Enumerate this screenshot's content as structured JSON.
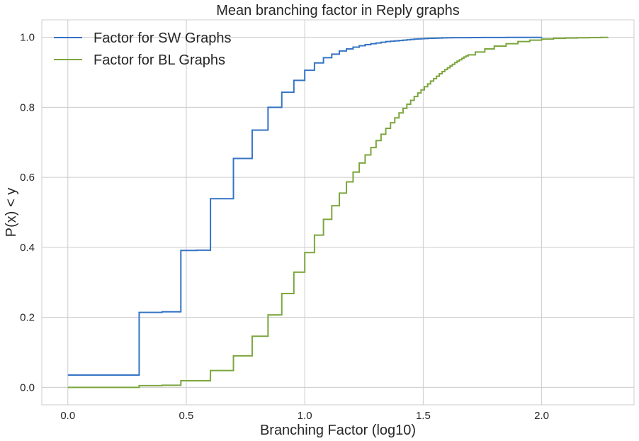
{
  "chart_data": {
    "type": "line",
    "title": "Mean branching factor in Reply graphs",
    "xlabel": "Branching Factor (log10)",
    "ylabel": "P(x) < y",
    "xlim": [
      -0.11,
      2.39
    ],
    "ylim": [
      -0.05,
      1.05
    ],
    "xticks": [
      0.0,
      0.5,
      1.0,
      1.5,
      2.0
    ],
    "xtick_labels": [
      "0.0",
      "0.5",
      "1.0",
      "1.5",
      "2.0"
    ],
    "yticks": [
      0.0,
      0.2,
      0.4,
      0.6,
      0.8,
      1.0
    ],
    "ytick_labels": [
      "0.0",
      "0.2",
      "0.4",
      "0.6",
      "0.8",
      "1.0"
    ],
    "grid": true,
    "legend_position": "top-left",
    "series": [
      {
        "name": "Factor for SW Graphs",
        "color": "#3574c4",
        "step": true,
        "x": [
          0.0,
          0.301,
          0.398,
          0.477,
          0.544,
          0.602,
          0.699,
          0.778,
          0.845,
          0.903,
          0.954,
          1.0,
          1.041,
          1.079,
          1.114,
          1.146,
          1.176,
          1.204,
          1.23,
          1.255,
          1.279,
          1.301,
          1.322,
          1.342,
          1.362,
          1.38,
          1.398,
          1.415,
          1.431,
          1.447,
          1.462,
          1.477,
          1.491,
          1.505,
          1.519,
          1.531,
          1.544,
          1.556,
          1.568,
          1.58,
          1.602,
          1.623,
          1.653,
          1.699,
          1.748,
          1.799,
          1.851,
          1.903,
          1.954,
          2.0
        ],
        "y": [
          0.035,
          0.214,
          0.216,
          0.391,
          0.392,
          0.539,
          0.654,
          0.735,
          0.8,
          0.843,
          0.877,
          0.906,
          0.927,
          0.942,
          0.952,
          0.961,
          0.967,
          0.972,
          0.976,
          0.979,
          0.982,
          0.984,
          0.986,
          0.988,
          0.989,
          0.99,
          0.991,
          0.992,
          0.993,
          0.994,
          0.995,
          0.9955,
          0.996,
          0.9965,
          0.997,
          0.9973,
          0.9976,
          0.9979,
          0.9982,
          0.9985,
          0.9988,
          0.999,
          0.9992,
          0.9994,
          0.9996,
          0.9997,
          0.9998,
          0.9999,
          0.99995,
          1.0
        ]
      },
      {
        "name": "Factor for BL Graphs",
        "color": "#7ca63e",
        "step": true,
        "x": [
          0.0,
          0.301,
          0.398,
          0.477,
          0.602,
          0.699,
          0.778,
          0.845,
          0.903,
          0.954,
          1.0,
          1.041,
          1.079,
          1.114,
          1.146,
          1.176,
          1.204,
          1.23,
          1.255,
          1.279,
          1.301,
          1.322,
          1.342,
          1.362,
          1.38,
          1.398,
          1.415,
          1.431,
          1.447,
          1.462,
          1.477,
          1.491,
          1.505,
          1.519,
          1.531,
          1.544,
          1.556,
          1.568,
          1.58,
          1.591,
          1.602,
          1.613,
          1.623,
          1.633,
          1.643,
          1.653,
          1.663,
          1.672,
          1.681,
          1.69,
          1.72,
          1.76,
          1.8,
          1.85,
          1.9,
          1.95,
          2.0,
          2.05,
          2.1,
          2.15,
          2.2,
          2.25,
          2.28
        ],
        "y": [
          0.0,
          0.005,
          0.006,
          0.019,
          0.048,
          0.09,
          0.146,
          0.207,
          0.268,
          0.329,
          0.385,
          0.435,
          0.48,
          0.519,
          0.555,
          0.587,
          0.615,
          0.641,
          0.664,
          0.685,
          0.705,
          0.723,
          0.74,
          0.756,
          0.77,
          0.784,
          0.797,
          0.809,
          0.82,
          0.831,
          0.841,
          0.85,
          0.859,
          0.867,
          0.875,
          0.882,
          0.889,
          0.896,
          0.902,
          0.908,
          0.913,
          0.918,
          0.923,
          0.928,
          0.932,
          0.936,
          0.94,
          0.944,
          0.947,
          0.95,
          0.958,
          0.967,
          0.975,
          0.982,
          0.988,
          0.992,
          0.995,
          0.997,
          0.998,
          0.9988,
          0.9994,
          0.9998,
          1.0
        ]
      }
    ]
  }
}
